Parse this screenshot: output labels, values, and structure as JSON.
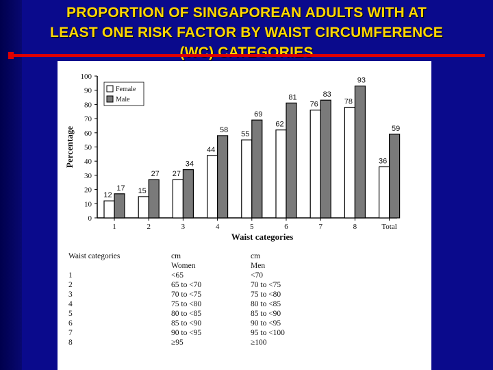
{
  "slide": {
    "title_lines": [
      "PROPORTION OF SINGAPOREAN ADULTS WITH AT",
      "LEAST ONE RISK FACTOR BY WAIST CIRCUMFERENCE",
      "(WC) CATEGORIES"
    ],
    "colors": {
      "background": "#0a0a8c",
      "title": "#ffd700",
      "rule": "#e00000"
    }
  },
  "chart_data": {
    "type": "bar",
    "categories": [
      "1",
      "2",
      "3",
      "4",
      "5",
      "6",
      "7",
      "8",
      "Total"
    ],
    "series": [
      {
        "name": "Female",
        "color": "#ffffff",
        "values": [
          12,
          15,
          27,
          44,
          55,
          62,
          76,
          78,
          36
        ]
      },
      {
        "name": "Male",
        "color": "#7a7a7a",
        "values": [
          17,
          27,
          34,
          58,
          69,
          81,
          83,
          93,
          59
        ]
      }
    ],
    "xlabel": "Waist categories",
    "ylabel": "Percentage",
    "ylim": [
      0,
      100
    ],
    "yticks": [
      0,
      10,
      20,
      30,
      40,
      50,
      60,
      70,
      80,
      90,
      100
    ],
    "legend_position": "top-left",
    "grid": false
  },
  "table": {
    "header": [
      "Waist categories",
      "cm",
      "cm"
    ],
    "subheader": [
      "",
      "Women",
      "Men"
    ],
    "rows": [
      [
        "1",
        "<65",
        "<70"
      ],
      [
        "2",
        "65 to <70",
        "70 to <75"
      ],
      [
        "3",
        "70 to <75",
        "75 to <80"
      ],
      [
        "4",
        "75 to <80",
        "80 to <85"
      ],
      [
        "5",
        "80 to <85",
        "85 to <90"
      ],
      [
        "6",
        "85 to <90",
        "90 to <95"
      ],
      [
        "7",
        "90 to <95",
        "95 to <100"
      ],
      [
        "8",
        "≥95",
        "≥100"
      ]
    ]
  }
}
